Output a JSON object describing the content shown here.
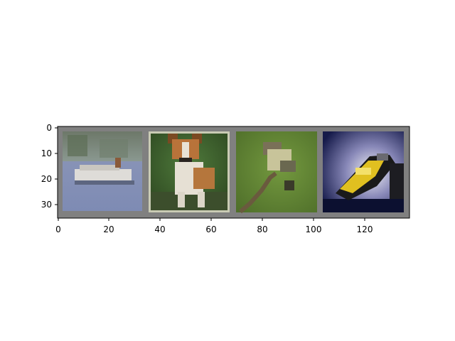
{
  "axes": {
    "x_ticks": [
      "0",
      "20",
      "40",
      "60",
      "80",
      "100",
      "120"
    ],
    "y_ticks": [
      "0",
      "10",
      "20",
      "30"
    ]
  },
  "images": [
    {
      "name": "boat-tile",
      "subject": "boat"
    },
    {
      "name": "dog-tile",
      "subject": "dog"
    },
    {
      "name": "bird-tile",
      "subject": "bird"
    },
    {
      "name": "car-tile",
      "subject": "car"
    }
  ],
  "colors": {
    "frame": "#808080",
    "axis": "#000000"
  }
}
